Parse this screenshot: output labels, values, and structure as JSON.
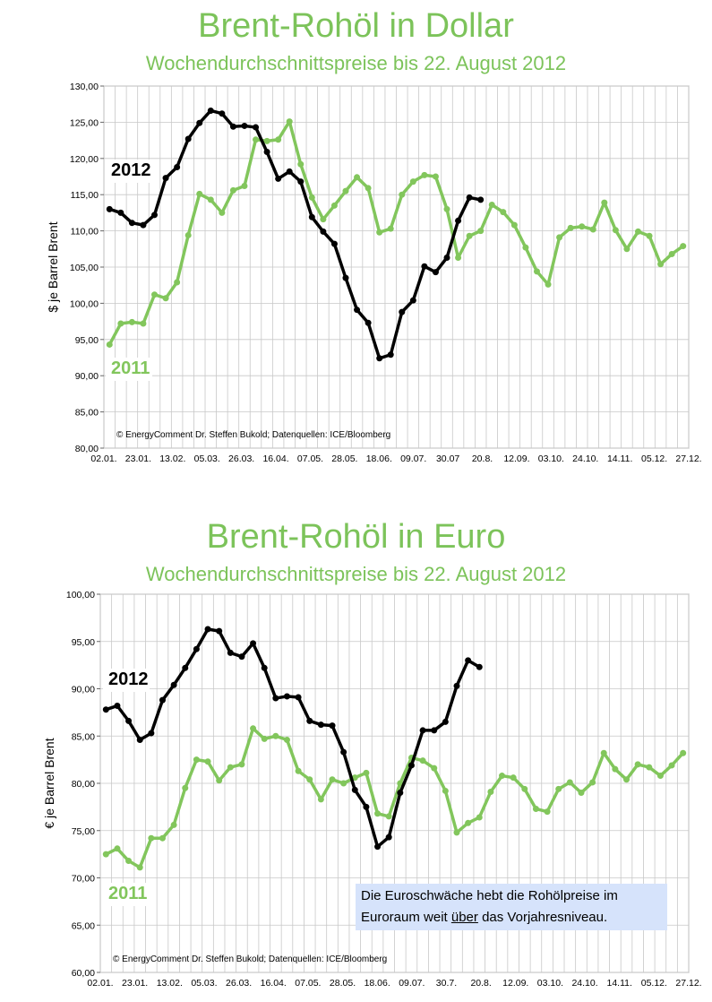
{
  "chart_data": [
    {
      "type": "line",
      "title": "Brent-Rohöl in Dollar",
      "subtitle": "Wochendurchschnittspreise bis 22. August 2012",
      "ylabel": "$ je Barrel  Brent",
      "ylim": [
        80,
        130
      ],
      "ytick_labels": [
        "80,00",
        "85,00",
        "90,00",
        "95,00",
        "100,00",
        "105,00",
        "110,00",
        "115,00",
        "120,00",
        "125,00",
        "130,00"
      ],
      "xtick_labels": [
        "02.01.",
        "23.01.",
        "13.02.",
        "05.03.",
        "26.03.",
        "16.04.",
        "07.05.",
        "28.05.",
        "18.06.",
        "09.07.",
        "30.07",
        "20.8.",
        "12.09.",
        "03.10.",
        "24.10.",
        "14.11.",
        "05.12.",
        "27.12."
      ],
      "grid": true,
      "source_note": "© EnergyComment Dr. Steffen Bukold; Datenquellen: ICE/Bloomberg",
      "series": [
        {
          "name": "2011",
          "color": "#82c65c",
          "markers": true,
          "values": [
            94.3,
            97.2,
            97.4,
            97.2,
            101.2,
            100.7,
            102.9,
            109.4,
            115.1,
            114.3,
            112.5,
            115.6,
            116.2,
            122.6,
            122.4,
            122.6,
            125.1,
            119.2,
            114.6,
            111.6,
            113.5,
            115.5,
            117.4,
            115.9,
            109.8,
            110.3,
            115.0,
            116.8,
            117.7,
            117.5,
            113.0,
            106.3,
            109.3,
            110.0,
            113.6,
            112.6,
            110.8,
            107.7,
            104.4,
            102.6,
            109.1,
            110.4,
            110.6,
            110.2,
            113.9,
            110.1,
            107.5,
            109.9,
            109.3,
            105.4,
            106.8,
            107.9
          ]
        },
        {
          "name": "2012",
          "color": "#000000",
          "markers": true,
          "values": [
            113.0,
            112.5,
            111.1,
            110.8,
            112.2,
            117.3,
            118.8,
            122.7,
            124.9,
            126.6,
            126.2,
            124.4,
            124.5,
            124.3,
            120.9,
            117.2,
            118.2,
            116.8,
            111.9,
            109.9,
            108.2,
            103.5,
            99.1,
            97.3,
            92.4,
            92.9,
            98.8,
            100.4,
            105.1,
            104.3,
            106.3,
            111.4,
            114.6,
            114.3
          ]
        }
      ]
    },
    {
      "type": "line",
      "title": "Brent-Rohöl in Euro",
      "subtitle": "Wochendurchschnittspreise bis 22. August 2012",
      "ylabel": "€ je Barrel Brent",
      "ylim": [
        60,
        100
      ],
      "ytick_labels": [
        "60,00",
        "65,00",
        "70,00",
        "75,00",
        "80,00",
        "85,00",
        "90,00",
        "95,00",
        "100,00"
      ],
      "xtick_labels": [
        "02.01.",
        "23.01.",
        "13.02.",
        "05.03.",
        "26.03.",
        "16.04.",
        "07.05.",
        "28.05.",
        "18.06.",
        "09.07.",
        "30.7.",
        "20.8.",
        "12.09.",
        "03.10.",
        "24.10.",
        "14.11.",
        "05.12.",
        "27.12."
      ],
      "grid": true,
      "source_note": "© EnergyComment Dr. Steffen Bukold; Datenquellen: ICE/Bloomberg",
      "annotation": {
        "before": "Die Euroschwäche hebt die Rohölpreise im Euroraum weit ",
        "underlined": "über",
        "after": " das Vorjahresniveau."
      },
      "series": [
        {
          "name": "2011",
          "color": "#82c65c",
          "markers": true,
          "values": [
            72.5,
            73.1,
            71.8,
            71.1,
            74.2,
            74.2,
            75.6,
            79.5,
            82.5,
            82.3,
            80.3,
            81.7,
            82.0,
            85.8,
            84.7,
            85.0,
            84.6,
            81.3,
            80.4,
            78.3,
            80.4,
            80.0,
            80.6,
            81.1,
            76.8,
            76.5,
            80.0,
            82.7,
            82.4,
            81.6,
            79.2,
            74.8,
            75.8,
            76.4,
            79.1,
            80.8,
            80.6,
            79.4,
            77.3,
            77.0,
            79.4,
            80.1,
            79.0,
            80.1,
            83.2,
            81.5,
            80.4,
            82.0,
            81.7,
            80.8,
            81.9,
            83.2
          ]
        },
        {
          "name": "2012",
          "color": "#000000",
          "markers": true,
          "values": [
            87.8,
            88.2,
            86.6,
            84.6,
            85.3,
            88.8,
            90.4,
            92.2,
            94.2,
            96.3,
            96.1,
            93.8,
            93.4,
            94.8,
            92.2,
            89.0,
            89.2,
            89.1,
            86.6,
            86.2,
            86.1,
            83.3,
            79.3,
            77.5,
            73.3,
            74.3,
            79.0,
            81.9,
            85.6,
            85.6,
            86.5,
            90.3,
            93.0,
            92.3
          ]
        }
      ]
    }
  ]
}
